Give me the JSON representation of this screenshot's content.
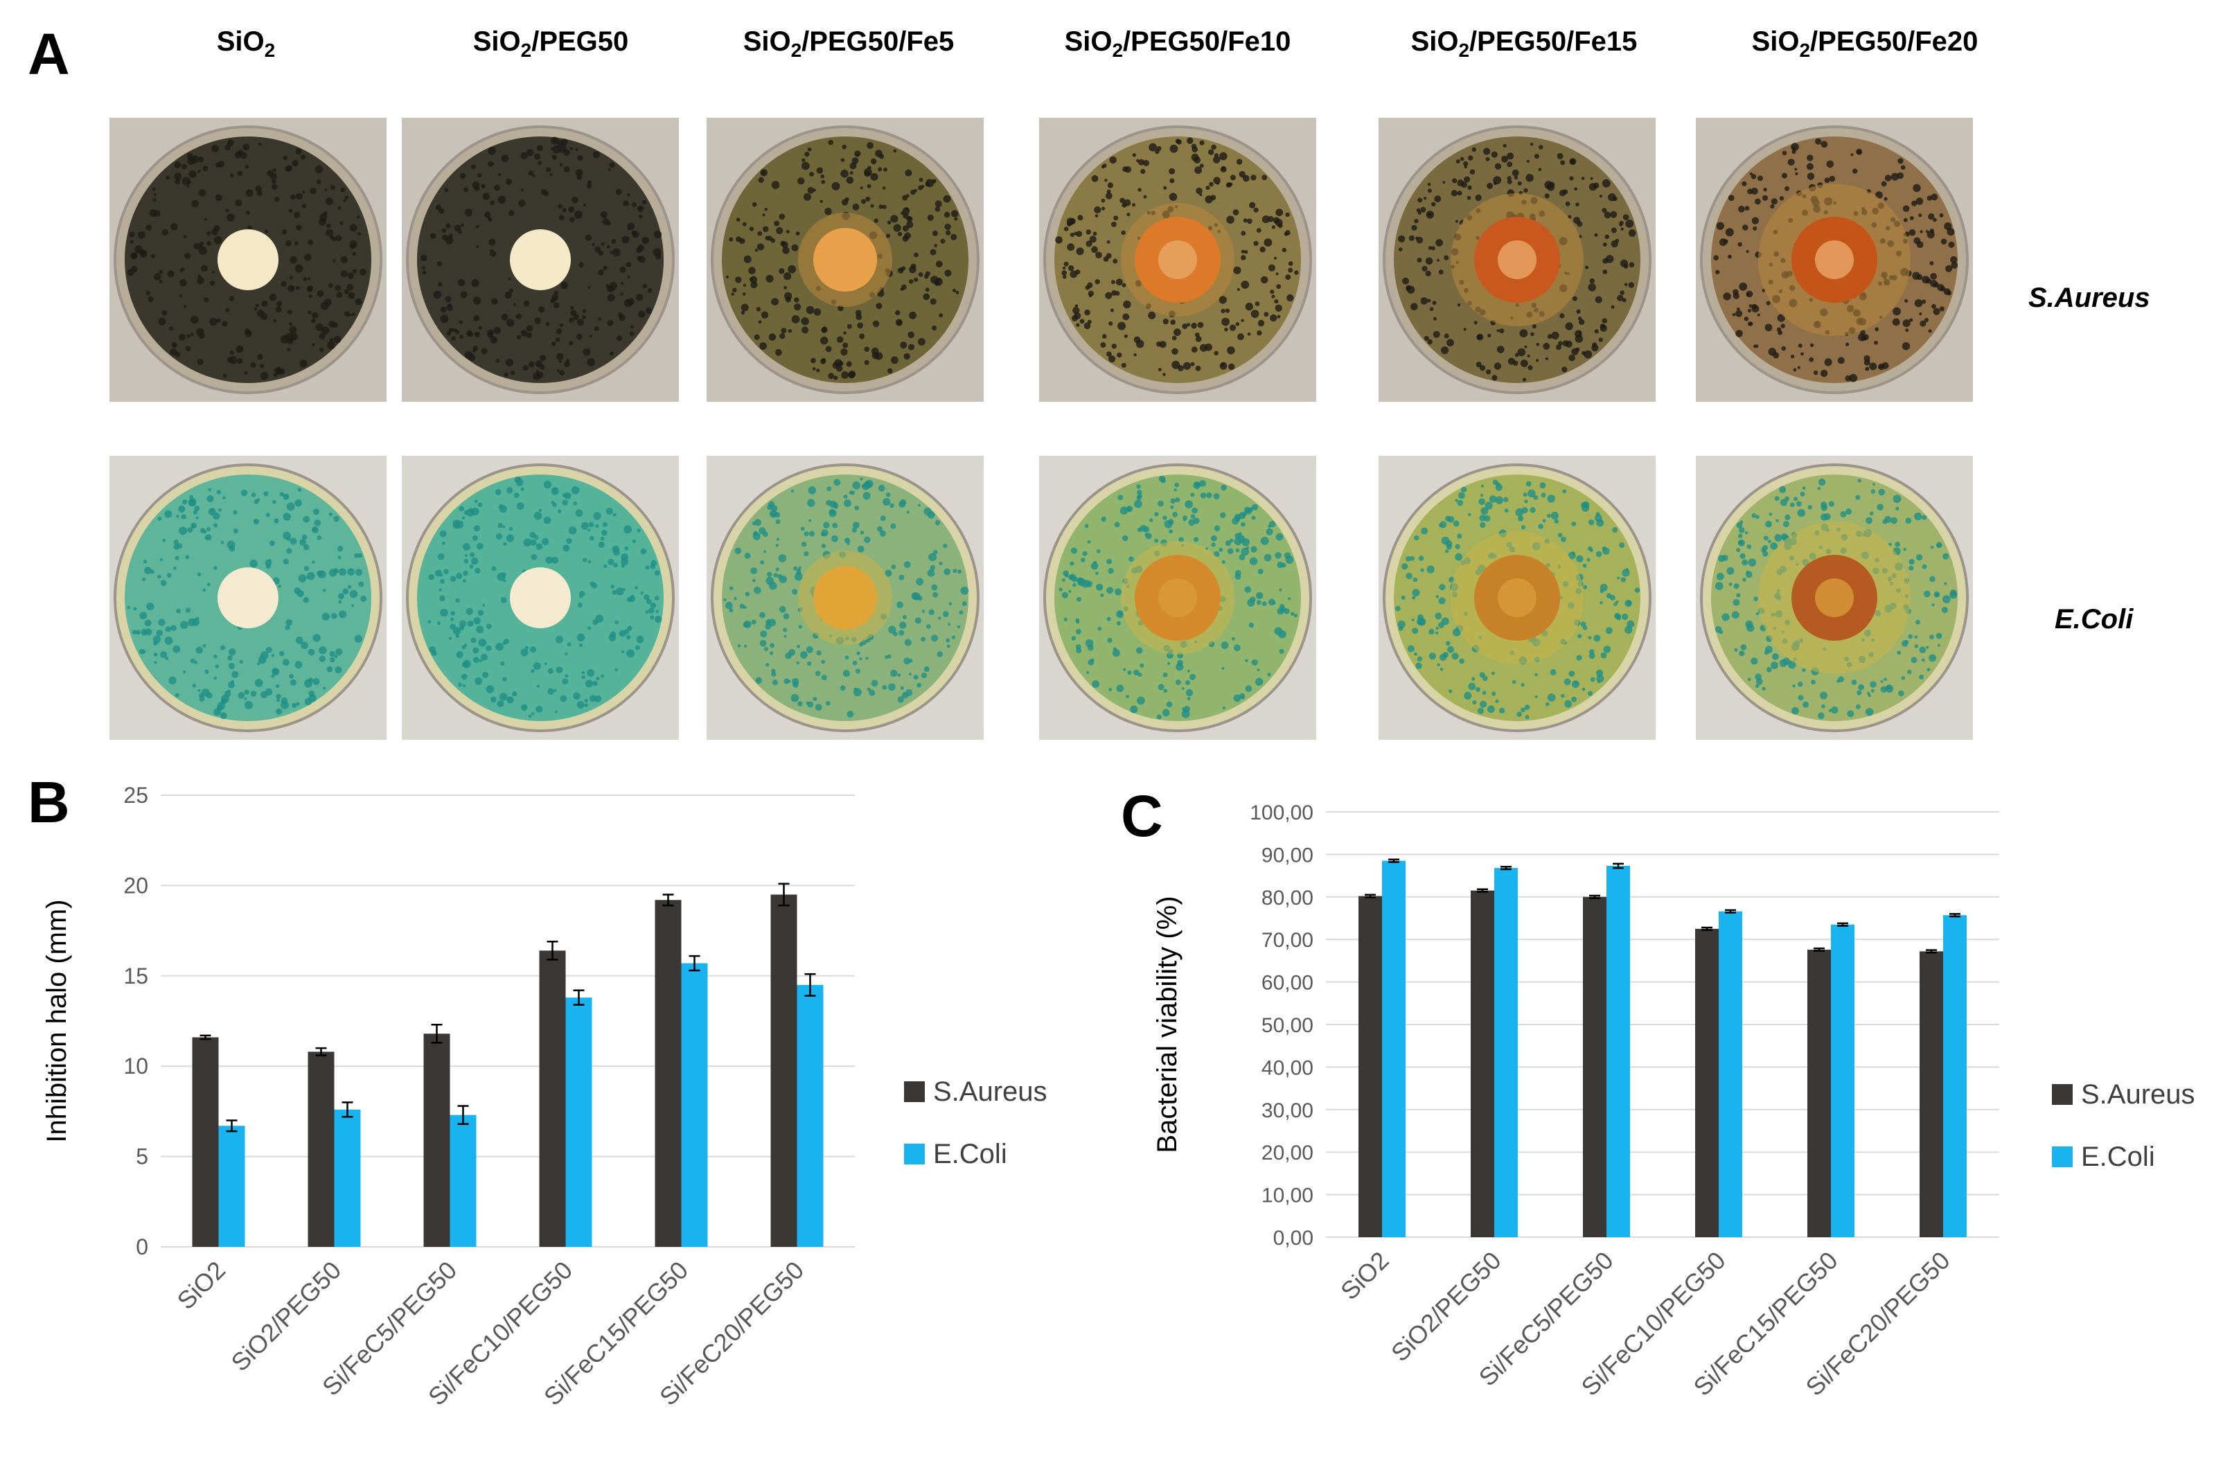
{
  "panel_a": {
    "letter": "A",
    "columns": [
      {
        "base": "SiO",
        "sub": "2",
        "rest": ""
      },
      {
        "base": "SiO",
        "sub": "2",
        "rest": "/PEG50"
      },
      {
        "base": "SiO",
        "sub": "2",
        "rest": "/PEG50/Fe5"
      },
      {
        "base": "SiO",
        "sub": "2",
        "rest": "/PEG50/Fe10"
      },
      {
        "base": "SiO",
        "sub": "2",
        "rest": "/PEG50/Fe15"
      },
      {
        "base": "SiO",
        "sub": "2",
        "rest": "/PEG50/Fe20"
      }
    ],
    "rows": [
      "S.Aureus",
      "E.Coli"
    ]
  },
  "panel_b": {
    "letter": "B"
  },
  "panel_c": {
    "letter": "C"
  },
  "colors": {
    "s_aureus": "#3b3735",
    "e_coli": "#19b3ef",
    "gridline": "#d9d9d9",
    "axis_text": "#595959"
  },
  "chart_data": [
    {
      "type": "bar",
      "panel": "B",
      "categories": [
        "SiO2",
        "SiO2/PEG50",
        "Si/FeC5/PEG50",
        "Si/FeC10/PEG50",
        "Si/FeC15/PEG50",
        "Si/FeC20/PEG50"
      ],
      "series": [
        {
          "name": "S.Aureus",
          "values": [
            11.6,
            10.8,
            11.8,
            16.4,
            19.2,
            19.5
          ],
          "errors": [
            0.1,
            0.2,
            0.5,
            0.5,
            0.3,
            0.6
          ]
        },
        {
          "name": "E.Coli",
          "values": [
            6.7,
            7.6,
            7.3,
            13.8,
            15.7,
            14.5
          ],
          "errors": [
            0.3,
            0.4,
            0.5,
            0.4,
            0.4,
            0.6
          ]
        }
      ],
      "ylabel": "Inhibition halo (mm)",
      "ylim": [
        0,
        25
      ],
      "yticks": [
        "0",
        "5",
        "10",
        "15",
        "20",
        "25"
      ],
      "grid": true,
      "legend": "right"
    },
    {
      "type": "bar",
      "panel": "C",
      "categories": [
        "SiO2",
        "SiO2/PEG50",
        "Si/FeC5/PEG50",
        "Si/FeC10/PEG50",
        "Si/FeC15/PEG50",
        "Si/FeC20/PEG50"
      ],
      "series": [
        {
          "name": "S.Aureus",
          "values": [
            80.2,
            81.5,
            80.0,
            72.5,
            67.6,
            67.2
          ],
          "errors": [
            0.3,
            0.3,
            0.3,
            0.3,
            0.3,
            0.3
          ]
        },
        {
          "name": "E.Coli",
          "values": [
            88.5,
            86.8,
            87.3,
            76.6,
            73.5,
            75.7
          ],
          "errors": [
            0.3,
            0.3,
            0.5,
            0.3,
            0.3,
            0.3
          ]
        }
      ],
      "ylabel": "Bacterial viability (%)",
      "ylim": [
        0,
        100
      ],
      "yticks": [
        "0,00",
        "10,00",
        "20,00",
        "30,00",
        "40,00",
        "50,00",
        "60,00",
        "70,00",
        "80,00",
        "90,00",
        "100,00"
      ],
      "grid": true,
      "legend": "right"
    }
  ]
}
